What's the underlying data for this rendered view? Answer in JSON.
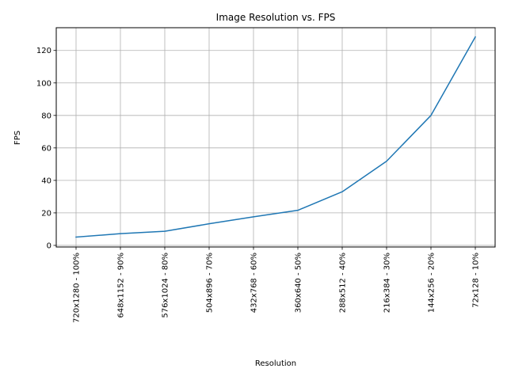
{
  "chart_data": {
    "type": "line",
    "title": "Image Resolution vs. FPS",
    "xlabel": "Resolution",
    "ylabel": "FPS",
    "categories": [
      "720x1280 - 100%",
      "648x1152 - 90%",
      "576x1024 - 80%",
      "504x896 - 70%",
      "432x768 - 60%",
      "360x640 - 50%",
      "288x512 - 40%",
      "216x384 - 30%",
      "144x256 - 20%",
      "72x128 - 10%"
    ],
    "series": [
      {
        "values": [
          5.1,
          7.2,
          8.7,
          13.3,
          17.6,
          21.6,
          33.0,
          51.8,
          80.0,
          128.3
        ],
        "color": "#1f77b4"
      }
    ],
    "ylim": [
      -1,
      134
    ],
    "yticks": [
      0,
      20,
      40,
      60,
      80,
      100,
      120
    ],
    "grid": true
  }
}
